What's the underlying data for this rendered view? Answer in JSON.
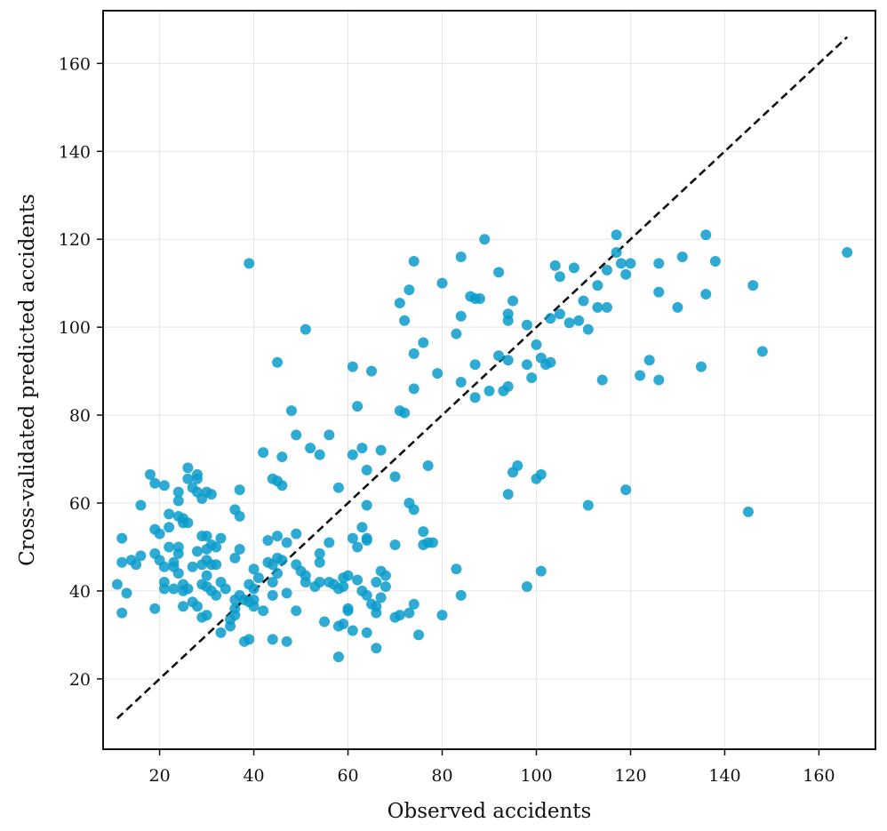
{
  "colors": {
    "points": "#0a9ccb",
    "reference_line": "#111111",
    "grid": "#e6e6e6",
    "frame": "#111111"
  },
  "chart_data": {
    "type": "scatter",
    "title": "",
    "xlabel": "Observed accidents",
    "ylabel": "Cross-validated predicted accidents",
    "xlim": [
      8,
      172
    ],
    "ylim": [
      4,
      172
    ],
    "xticks": [
      20,
      40,
      60,
      80,
      100,
      120,
      140,
      160
    ],
    "yticks": [
      20,
      40,
      60,
      80,
      100,
      120,
      140,
      160
    ],
    "xtick_labels": [
      "20",
      "40",
      "60",
      "80",
      "100",
      "120",
      "140",
      "160"
    ],
    "ytick_labels": [
      "20",
      "40",
      "60",
      "80",
      "100",
      "120",
      "140",
      "160"
    ],
    "grid": true,
    "reference_line": {
      "style": "dashed",
      "from": [
        11,
        11
      ],
      "to": [
        166,
        166
      ]
    },
    "points": [
      [
        11,
        41.5
      ],
      [
        12,
        52
      ],
      [
        12,
        46.5
      ],
      [
        12,
        35
      ],
      [
        13,
        39.5
      ],
      [
        14,
        47
      ],
      [
        15,
        46
      ],
      [
        16,
        59.5
      ],
      [
        16,
        48
      ],
      [
        18,
        66.5
      ],
      [
        19,
        64.5
      ],
      [
        19,
        54
      ],
      [
        19,
        48.5
      ],
      [
        19,
        36
      ],
      [
        20,
        53
      ],
      [
        20,
        47
      ],
      [
        21,
        64
      ],
      [
        21,
        45.5
      ],
      [
        21,
        42
      ],
      [
        21,
        40.5
      ],
      [
        22,
        57.5
      ],
      [
        22,
        54.5
      ],
      [
        22,
        50
      ],
      [
        23,
        46.5
      ],
      [
        23,
        45.5
      ],
      [
        23,
        40.5
      ],
      [
        24,
        62.5
      ],
      [
        24,
        60.5
      ],
      [
        24,
        57
      ],
      [
        24,
        50
      ],
      [
        24,
        48.5
      ],
      [
        24,
        44
      ],
      [
        25,
        56.5
      ],
      [
        25,
        55.5
      ],
      [
        25,
        41.5
      ],
      [
        25,
        40
      ],
      [
        25,
        36.5
      ],
      [
        26,
        68
      ],
      [
        26,
        65.5
      ],
      [
        26,
        55.5
      ],
      [
        26,
        40.5
      ],
      [
        27,
        63.5
      ],
      [
        27,
        45.5
      ],
      [
        27,
        37.5
      ],
      [
        28,
        66.5
      ],
      [
        28,
        65.5
      ],
      [
        28,
        62.5
      ],
      [
        28,
        49
      ],
      [
        28,
        36.5
      ],
      [
        29,
        61
      ],
      [
        29,
        52.5
      ],
      [
        29,
        46
      ],
      [
        29,
        41.5
      ],
      [
        29,
        34
      ],
      [
        30,
        62.5
      ],
      [
        30,
        52.5
      ],
      [
        30,
        49.5
      ],
      [
        30,
        47
      ],
      [
        30,
        43.5
      ],
      [
        30,
        41
      ],
      [
        30,
        34.5
      ],
      [
        31,
        62
      ],
      [
        31,
        50.5
      ],
      [
        31,
        46
      ],
      [
        31,
        40
      ],
      [
        32,
        50
      ],
      [
        32,
        46
      ],
      [
        32,
        39
      ],
      [
        33,
        52
      ],
      [
        33,
        42
      ],
      [
        33,
        30.5
      ],
      [
        34,
        40.5
      ],
      [
        35,
        33.5
      ],
      [
        35,
        32
      ],
      [
        36,
        58.5
      ],
      [
        36,
        47.5
      ],
      [
        36,
        38
      ],
      [
        36,
        36
      ],
      [
        36,
        34.5
      ],
      [
        37,
        63
      ],
      [
        37,
        57
      ],
      [
        37,
        49.5
      ],
      [
        37,
        39
      ],
      [
        38,
        38
      ],
      [
        38,
        28.5
      ],
      [
        39,
        114.5
      ],
      [
        39,
        41.5
      ],
      [
        39,
        37.5
      ],
      [
        39,
        29
      ],
      [
        40,
        45
      ],
      [
        40,
        40.5
      ],
      [
        40,
        38
      ],
      [
        40,
        36.5
      ],
      [
        41,
        43
      ],
      [
        42,
        71.5
      ],
      [
        42,
        35.5
      ],
      [
        43,
        51.5
      ],
      [
        43,
        46.5
      ],
      [
        44,
        65.5
      ],
      [
        44,
        46
      ],
      [
        44,
        42
      ],
      [
        44,
        39
      ],
      [
        44,
        29
      ],
      [
        45,
        92
      ],
      [
        45,
        65
      ],
      [
        45,
        52.5
      ],
      [
        45,
        47.5
      ],
      [
        45,
        44
      ],
      [
        46,
        70.5
      ],
      [
        46,
        64
      ],
      [
        46,
        47
      ],
      [
        47,
        51
      ],
      [
        47,
        39.5
      ],
      [
        47,
        28.5
      ],
      [
        48,
        81
      ],
      [
        49,
        75.5
      ],
      [
        49,
        53
      ],
      [
        49,
        46
      ],
      [
        49,
        35.5
      ],
      [
        50,
        44.5
      ],
      [
        51,
        99.5
      ],
      [
        51,
        43.5
      ],
      [
        51,
        42
      ],
      [
        52,
        72.5
      ],
      [
        53,
        41
      ],
      [
        54,
        71
      ],
      [
        54,
        48.5
      ],
      [
        54,
        46.5
      ],
      [
        54,
        42
      ],
      [
        55,
        33
      ],
      [
        56,
        75.5
      ],
      [
        56,
        51
      ],
      [
        56,
        42
      ],
      [
        57,
        41.5
      ],
      [
        58,
        63.5
      ],
      [
        58,
        40.5
      ],
      [
        58,
        32
      ],
      [
        58,
        25
      ],
      [
        59,
        43
      ],
      [
        59,
        41
      ],
      [
        59,
        32.5
      ],
      [
        60,
        43.5
      ],
      [
        60,
        36
      ],
      [
        60,
        35.5
      ],
      [
        61,
        91
      ],
      [
        61,
        71
      ],
      [
        61,
        52
      ],
      [
        61,
        31
      ],
      [
        62,
        82
      ],
      [
        62,
        50
      ],
      [
        62,
        42.5
      ],
      [
        63,
        72.5
      ],
      [
        63,
        54.5
      ],
      [
        63,
        40
      ],
      [
        64,
        67.5
      ],
      [
        64,
        59.5
      ],
      [
        64,
        52
      ],
      [
        64,
        51.5
      ],
      [
        64,
        39
      ],
      [
        64,
        30.5
      ],
      [
        65,
        90
      ],
      [
        65,
        37
      ],
      [
        66,
        42
      ],
      [
        66,
        36.5
      ],
      [
        66,
        35
      ],
      [
        66,
        27
      ],
      [
        67,
        72
      ],
      [
        67,
        44.5
      ],
      [
        67,
        38.5
      ],
      [
        68,
        43.5
      ],
      [
        68,
        41
      ],
      [
        70,
        66
      ],
      [
        70,
        50.5
      ],
      [
        70,
        34
      ],
      [
        71,
        105.5
      ],
      [
        71,
        81
      ],
      [
        71,
        34.5
      ],
      [
        72,
        101.5
      ],
      [
        72,
        80.5
      ],
      [
        73,
        108.5
      ],
      [
        73,
        60
      ],
      [
        73,
        35
      ],
      [
        74,
        115
      ],
      [
        74,
        94
      ],
      [
        74,
        86
      ],
      [
        74,
        58.5
      ],
      [
        74,
        37
      ],
      [
        75,
        30
      ],
      [
        76,
        96.5
      ],
      [
        76,
        53.5
      ],
      [
        76,
        50.5
      ],
      [
        77,
        68.5
      ],
      [
        77,
        51
      ],
      [
        78,
        51
      ],
      [
        79,
        89.5
      ],
      [
        80,
        110
      ],
      [
        80,
        34.5
      ],
      [
        83,
        98.5
      ],
      [
        83,
        45
      ],
      [
        84,
        116
      ],
      [
        84,
        102.5
      ],
      [
        84,
        87.5
      ],
      [
        84,
        39
      ],
      [
        86,
        107
      ],
      [
        87,
        106.5
      ],
      [
        87,
        91.5
      ],
      [
        87,
        84
      ],
      [
        88,
        106.5
      ],
      [
        89,
        120
      ],
      [
        90,
        85.5
      ],
      [
        92,
        112.5
      ],
      [
        92,
        93.5
      ],
      [
        93,
        85.5
      ],
      [
        94,
        103
      ],
      [
        94,
        101.5
      ],
      [
        94,
        92.5
      ],
      [
        94,
        86.5
      ],
      [
        94,
        62
      ],
      [
        95,
        106
      ],
      [
        95,
        67
      ],
      [
        96,
        68.5
      ],
      [
        98,
        100.5
      ],
      [
        98,
        91.5
      ],
      [
        98,
        41
      ],
      [
        99,
        88.5
      ],
      [
        100,
        96
      ],
      [
        100,
        65.5
      ],
      [
        101,
        93
      ],
      [
        101,
        66.5
      ],
      [
        101,
        44.5
      ],
      [
        102,
        91.5
      ],
      [
        103,
        102
      ],
      [
        103,
        92
      ],
      [
        104,
        114
      ],
      [
        105,
        111.5
      ],
      [
        105,
        103
      ],
      [
        107,
        101
      ],
      [
        108,
        113.5
      ],
      [
        109,
        101.5
      ],
      [
        110,
        106
      ],
      [
        111,
        99.5
      ],
      [
        111,
        59.5
      ],
      [
        113,
        109.5
      ],
      [
        113,
        104.5
      ],
      [
        114,
        88
      ],
      [
        115,
        104.5
      ],
      [
        115,
        113
      ],
      [
        117,
        121
      ],
      [
        117,
        117
      ],
      [
        118,
        114.5
      ],
      [
        119,
        112
      ],
      [
        119,
        63
      ],
      [
        120,
        114.5
      ],
      [
        122,
        89
      ],
      [
        124,
        92.5
      ],
      [
        126,
        114.5
      ],
      [
        126,
        108
      ],
      [
        126,
        88
      ],
      [
        130,
        104.5
      ],
      [
        131,
        116
      ],
      [
        135,
        91
      ],
      [
        136,
        121
      ],
      [
        136,
        107.5
      ],
      [
        138,
        115
      ],
      [
        145,
        58
      ],
      [
        146,
        109.5
      ],
      [
        148,
        94.5
      ],
      [
        166,
        117
      ]
    ]
  }
}
